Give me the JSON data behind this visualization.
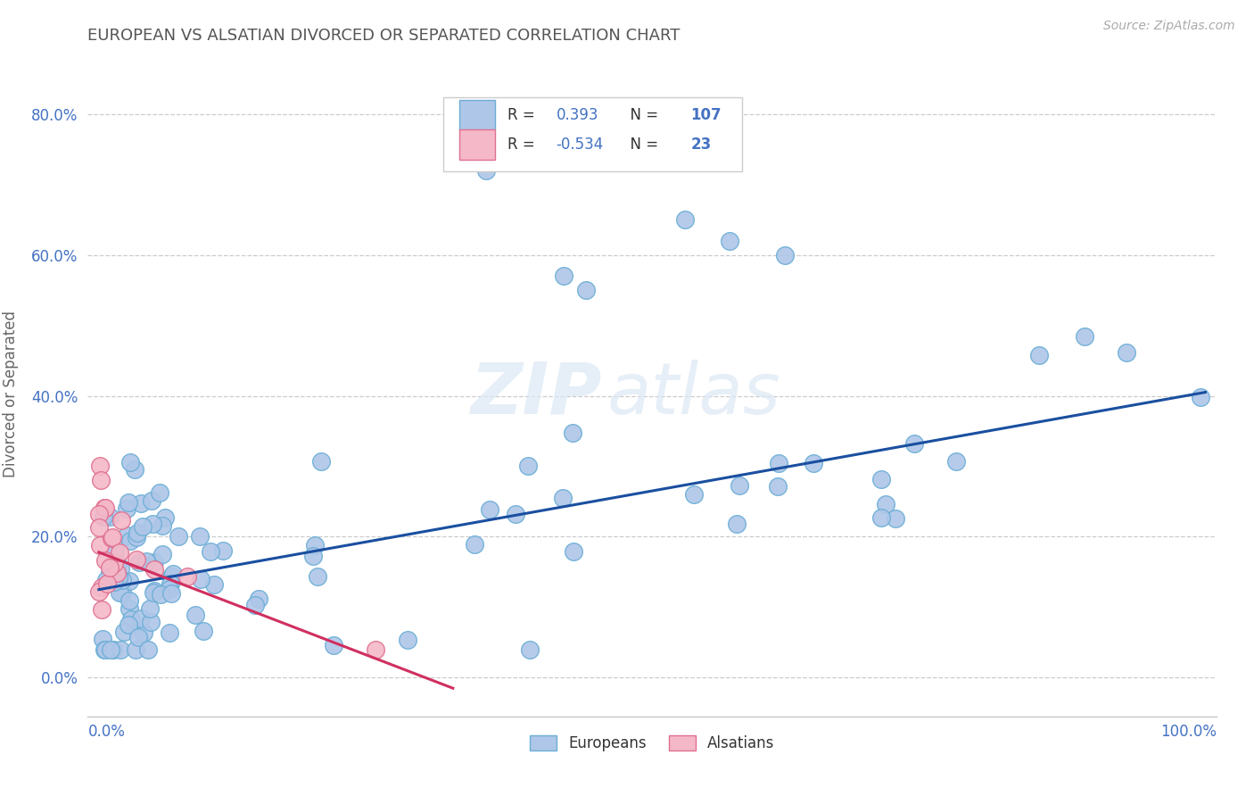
{
  "title": "EUROPEAN VS ALSATIAN DIVORCED OR SEPARATED CORRELATION CHART",
  "source": "Source: ZipAtlas.com",
  "ylabel": "Divorced or Separated",
  "blue_r": "0.393",
  "blue_n": "107",
  "pink_r": "-0.534",
  "pink_n": "23",
  "blue_color": "#aec6e8",
  "blue_edge": "#6baed6",
  "pink_color": "#f4b8c8",
  "pink_edge": "#e07090",
  "blue_line_color": "#1a4fa0",
  "pink_line_color": "#d03060",
  "legend_label_blue": "Europeans",
  "legend_label_pink": "Alsatians",
  "watermark_zip": "ZIP",
  "watermark_atlas": "atlas",
  "blue_line_x0": 0.0,
  "blue_line_y0": 0.125,
  "blue_line_x1": 1.0,
  "blue_line_y1": 0.405,
  "pink_line_x0": 0.0,
  "pink_line_y0": 0.178,
  "pink_line_x1": 0.32,
  "pink_line_y1": -0.015,
  "xlim": [
    -0.01,
    1.01
  ],
  "ylim": [
    -0.055,
    0.86
  ],
  "yticks": [
    0.0,
    0.2,
    0.4,
    0.6,
    0.8
  ],
  "ytick_labels": [
    "0.0%",
    "20.0%",
    "40.0%",
    "60.0%",
    "80.0%"
  ],
  "background_color": "#ffffff",
  "grid_color": "#cccccc",
  "title_color": "#555555",
  "axis_color": "#4472c4",
  "legend_num_color": "#4472c4",
  "legend_text_color": "#333333",
  "source_color": "#aaaaaa"
}
